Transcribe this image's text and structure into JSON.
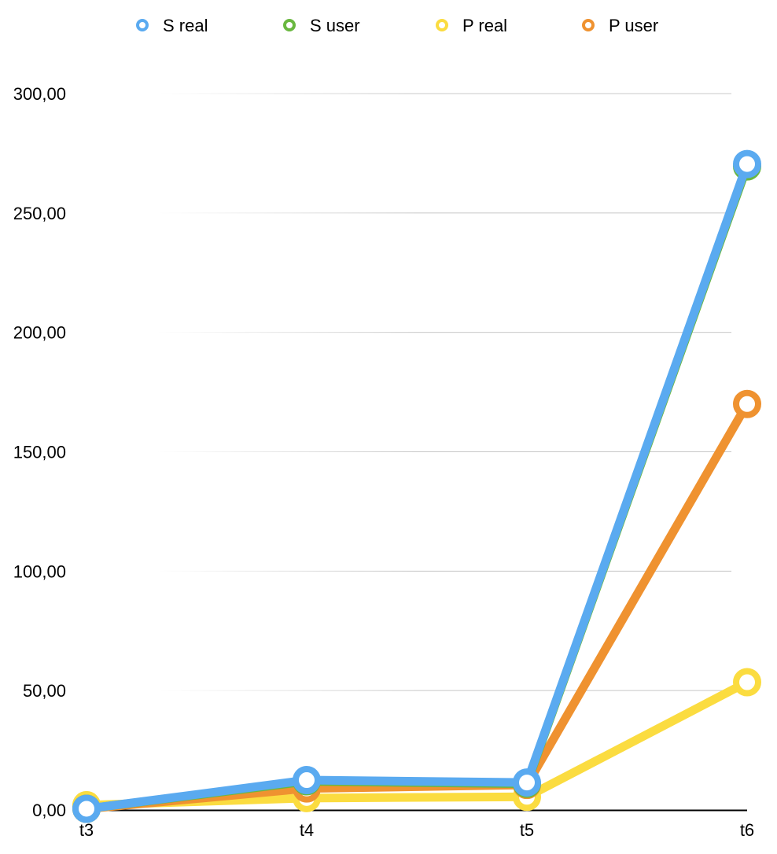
{
  "chart_data": {
    "type": "line",
    "title": "",
    "xlabel": "",
    "ylabel": "",
    "categories": [
      "t3",
      "t4",
      "t5",
      "t6"
    ],
    "ylim": [
      0,
      300
    ],
    "yticks": [
      0,
      50,
      100,
      150,
      200,
      250,
      300
    ],
    "ytick_labels": [
      "0,00",
      "50,00",
      "100,00",
      "150,00",
      "200,00",
      "250,00",
      "300,00"
    ],
    "grid": true,
    "legend_position": "top",
    "series": [
      {
        "name": "S real",
        "color": "#5aaaf0",
        "values": [
          0.5,
          12.5,
          11.5,
          270.5
        ]
      },
      {
        "name": "S user",
        "color": "#6ab840",
        "values": [
          0.5,
          12.0,
          11.0,
          269.5
        ]
      },
      {
        "name": "P real",
        "color": "#fbdc40",
        "values": [
          2.0,
          5.0,
          5.5,
          53.5
        ]
      },
      {
        "name": "P user",
        "color": "#ef9230",
        "values": [
          0.5,
          9.0,
          10.5,
          170.0
        ]
      }
    ],
    "draw_order": [
      2,
      3,
      1,
      0
    ]
  }
}
